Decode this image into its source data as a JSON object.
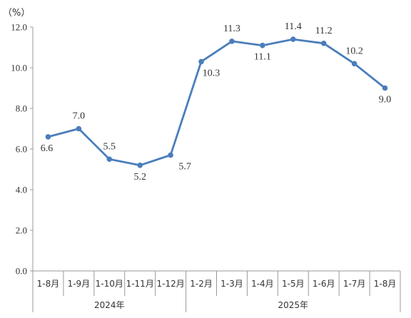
{
  "chart_data": {
    "type": "line",
    "unit_label": "（%）",
    "categories": [
      "1-8月",
      "1-9月",
      "1-10月",
      "1-11月",
      "1-12月",
      "1-2月",
      "1-3月",
      "1-4月",
      "1-5月",
      "1-6月",
      "1-7月",
      "1-8月"
    ],
    "groups": [
      {
        "label": "2024年",
        "count": 5
      },
      {
        "label": "2025年",
        "count": 7
      }
    ],
    "series": [
      {
        "values": [
          6.6,
          7.0,
          5.5,
          5.2,
          5.7,
          10.3,
          11.3,
          11.1,
          11.4,
          11.2,
          10.2,
          9.0
        ],
        "labels": [
          "6.6",
          "7.0",
          "5.5",
          "5.2",
          "5.7",
          "10.3",
          "11.3",
          "11.1",
          "11.4",
          "11.2",
          "10.2",
          "9.0"
        ]
      }
    ],
    "ylim": [
      0,
      12
    ],
    "yticks": [
      "0.0",
      "2.0",
      "4.0",
      "6.0",
      "8.0",
      "10.0",
      "12.0"
    ],
    "grid": false,
    "line_color": "#4a7ebb",
    "axis_color": "#999999"
  }
}
